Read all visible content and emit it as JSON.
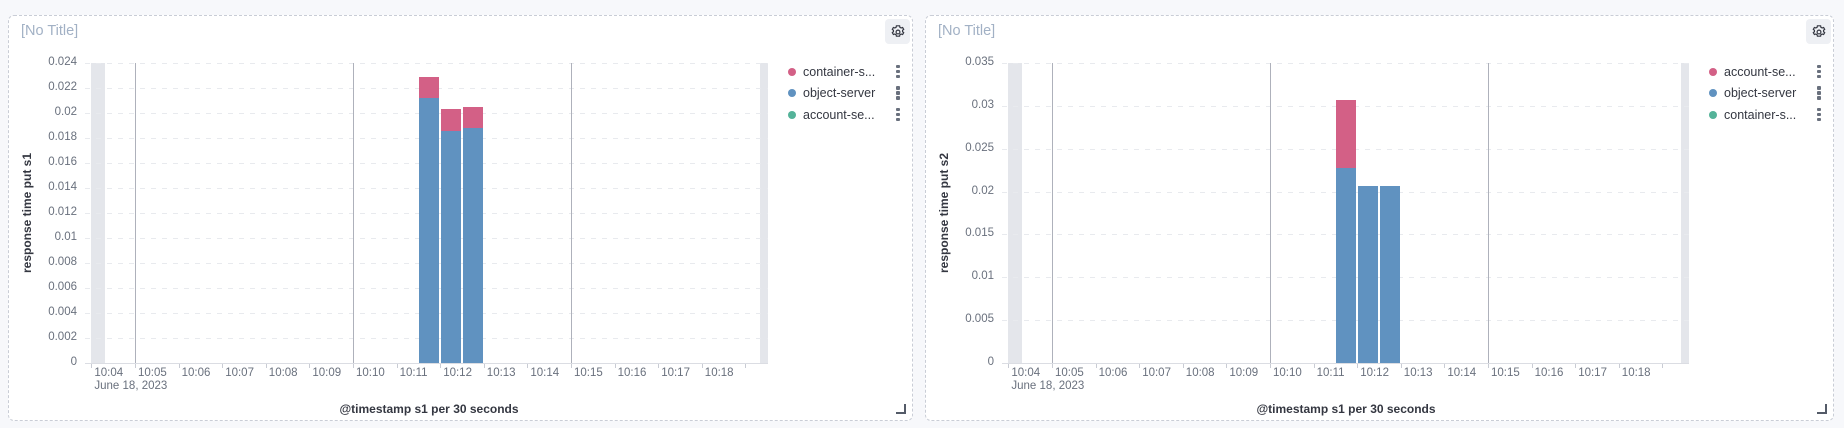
{
  "page": {
    "background": "#f7f8fb"
  },
  "icons": {
    "panel_options": "gear-icon",
    "legend_item_options": "boxes-vertical-icon",
    "resize": "resize-corner-icon"
  },
  "panels": [
    {
      "title_placeholder": "[No Title]",
      "legend": [
        {
          "label": "container-s...",
          "color": "#D36086"
        },
        {
          "label": "object-server",
          "color": "#6092C0"
        },
        {
          "label": "account-se...",
          "color": "#54B399"
        }
      ],
      "chart_data": {
        "type": "bar",
        "stacked": true,
        "xlabel": "@timestamp s1 per 30 seconds",
        "ylabel": "response time put s1",
        "x_context": "June 18, 2023",
        "x_ticks": [
          "10:04",
          "10:05",
          "10:06",
          "10:07",
          "10:08",
          "10:09",
          "10:10",
          "10:11",
          "10:12",
          "10:13",
          "10:14",
          "10:15",
          "10:16",
          "10:17",
          "10:18"
        ],
        "x_major_gridlines": [
          "10:05",
          "10:10",
          "10:15"
        ],
        "y_ticks": [
          "0.024",
          "0.022",
          "0.02",
          "0.018",
          "0.016",
          "0.014",
          "0.012",
          "0.01",
          "0.008",
          "0.006",
          "0.004",
          "0.002",
          "0"
        ],
        "ylim": [
          0,
          0.024
        ],
        "grid": true,
        "legend_position": "right",
        "buckets": [
          "10:11:30",
          "10:12:00",
          "10:12:30"
        ],
        "series": [
          {
            "name": "object-server",
            "color": "#6092C0",
            "values": [
              0.0212,
              0.0186,
              0.0188
            ]
          },
          {
            "name": "container-s...",
            "color": "#D36086",
            "values": [
              0.0017,
              0.0017,
              0.0017
            ]
          },
          {
            "name": "account-se...",
            "color": "#54B399",
            "values": [
              0,
              0,
              0
            ]
          }
        ]
      }
    },
    {
      "title_placeholder": "[No Title]",
      "legend": [
        {
          "label": "account-se...",
          "color": "#D36086"
        },
        {
          "label": "object-server",
          "color": "#6092C0"
        },
        {
          "label": "container-s...",
          "color": "#54B399"
        }
      ],
      "chart_data": {
        "type": "bar",
        "stacked": true,
        "xlabel": "@timestamp s1 per 30 seconds",
        "ylabel": "response time put s2",
        "x_context": "June 18, 2023",
        "x_ticks": [
          "10:04",
          "10:05",
          "10:06",
          "10:07",
          "10:08",
          "10:09",
          "10:10",
          "10:11",
          "10:12",
          "10:13",
          "10:14",
          "10:15",
          "10:16",
          "10:17",
          "10:18"
        ],
        "x_major_gridlines": [
          "10:05",
          "10:10",
          "10:15"
        ],
        "y_ticks": [
          "0.035",
          "0.03",
          "0.025",
          "0.02",
          "0.015",
          "0.01",
          "0.005",
          "0"
        ],
        "ylim": [
          0,
          0.035
        ],
        "grid": true,
        "legend_position": "right",
        "buckets": [
          "10:11:30",
          "10:12:00",
          "10:12:30"
        ],
        "series": [
          {
            "name": "object-server",
            "color": "#6092C0",
            "values": [
              0.0227,
              0.0206,
              0.0207
            ]
          },
          {
            "name": "account-se...",
            "color": "#D36086",
            "values": [
              0.008,
              0,
              0
            ]
          },
          {
            "name": "container-s...",
            "color": "#54B399",
            "values": [
              0,
              0,
              0
            ]
          }
        ]
      }
    }
  ]
}
